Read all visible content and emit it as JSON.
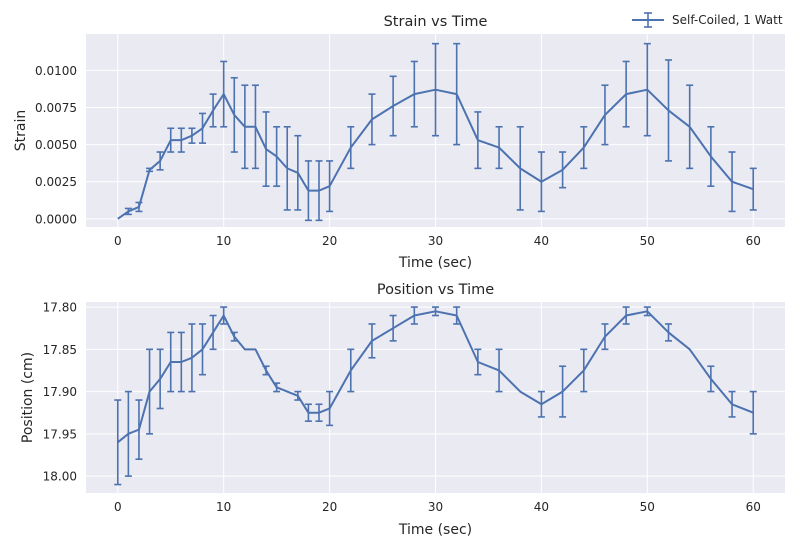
{
  "legend": {
    "label": "Self-Coiled, 1 Watt",
    "placement": "top-right",
    "color": "#4c72b0"
  },
  "chart_data": [
    {
      "type": "line",
      "title": "Strain vs Time",
      "xlabel": "Time (sec)",
      "ylabel": "Strain",
      "xlim": [
        -3,
        63
      ],
      "ylim": [
        -0.00055,
        0.01245
      ],
      "y_inverted": false,
      "grid": true,
      "xticks": [
        0,
        10,
        20,
        30,
        40,
        50,
        60
      ],
      "xtick_labels": [
        "0",
        "10",
        "20",
        "30",
        "40",
        "50",
        "60"
      ],
      "yticks": [
        0.0,
        0.0025,
        0.005,
        0.0075,
        0.01
      ],
      "ytick_labels": [
        "0.0000",
        "0.0025",
        "0.0050",
        "0.0075",
        "0.0100"
      ],
      "series": [
        {
          "name": "Self-Coiled, 1 Watt",
          "color": "#4c72b0",
          "x": [
            0,
            1,
            2,
            3,
            4,
            5,
            6,
            7,
            8,
            9,
            10,
            11,
            12,
            13,
            14,
            15,
            16,
            17,
            18,
            19,
            20,
            22,
            24,
            26,
            28,
            30,
            32,
            34,
            36,
            38,
            40,
            42,
            44,
            46,
            48,
            50,
            52,
            54,
            56,
            58,
            60
          ],
          "y": [
            0.0,
            0.0005,
            0.0008,
            0.0033,
            0.0039,
            0.0053,
            0.0053,
            0.0056,
            0.0061,
            0.0073,
            0.0084,
            0.007,
            0.0062,
            0.0062,
            0.0047,
            0.0042,
            0.0034,
            0.0031,
            0.0019,
            0.0019,
            0.0022,
            0.0048,
            0.0067,
            0.0076,
            0.0084,
            0.0087,
            0.0084,
            0.0053,
            0.0048,
            0.0034,
            0.0025,
            0.0033,
            0.0048,
            0.007,
            0.0084,
            0.0087,
            0.0073,
            0.0062,
            0.0042,
            0.0025,
            0.002
          ],
          "err": [
            0.0,
            0.0002,
            0.0003,
            0.0001,
            0.0006,
            0.0008,
            0.0008,
            0.0005,
            0.001,
            0.0011,
            0.0022,
            0.0025,
            0.0028,
            0.0028,
            0.0025,
            0.002,
            0.0028,
            0.0025,
            0.002,
            0.002,
            0.0017,
            0.0014,
            0.0017,
            0.002,
            0.0022,
            0.0031,
            0.0034,
            0.0019,
            0.0014,
            0.0028,
            0.002,
            0.0012,
            0.0014,
            0.002,
            0.0022,
            0.0031,
            0.0034,
            0.0028,
            0.002,
            0.002,
            0.0014
          ]
        }
      ]
    },
    {
      "type": "line",
      "title": "Position vs Time",
      "xlabel": "Time (sec)",
      "ylabel": "Position (cm)",
      "xlim": [
        -3,
        63
      ],
      "ylim": [
        17.794,
        18.02
      ],
      "y_inverted": true,
      "grid": true,
      "xticks": [
        0,
        10,
        20,
        30,
        40,
        50,
        60
      ],
      "xtick_labels": [
        "0",
        "10",
        "20",
        "30",
        "40",
        "50",
        "60"
      ],
      "yticks": [
        17.8,
        17.85,
        17.9,
        17.95,
        18.0
      ],
      "ytick_labels": [
        "17.80",
        "17.85",
        "17.90",
        "17.95",
        "18.00"
      ],
      "series": [
        {
          "name": "Self-Coiled, 1 Watt",
          "color": "#4c72b0",
          "x": [
            0,
            1,
            2,
            3,
            4,
            5,
            6,
            7,
            8,
            9,
            10,
            11,
            12,
            13,
            14,
            15,
            16,
            17,
            18,
            19,
            20,
            22,
            24,
            26,
            28,
            30,
            32,
            34,
            36,
            38,
            40,
            42,
            44,
            46,
            48,
            50,
            52,
            54,
            56,
            58,
            60
          ],
          "y": [
            17.96,
            17.95,
            17.945,
            17.9,
            17.885,
            17.865,
            17.865,
            17.86,
            17.85,
            17.83,
            17.81,
            17.835,
            17.85,
            17.85,
            17.875,
            17.895,
            17.9,
            17.905,
            17.925,
            17.925,
            17.92,
            17.875,
            17.84,
            17.825,
            17.81,
            17.805,
            17.81,
            17.865,
            17.875,
            17.9,
            17.915,
            17.9,
            17.875,
            17.835,
            17.81,
            17.805,
            17.83,
            17.85,
            17.885,
            17.915,
            17.925
          ],
          "err": [
            0.05,
            0.05,
            0.035,
            0.05,
            0.035,
            0.035,
            0.035,
            0.04,
            0.03,
            0.02,
            0.01,
            0.005,
            0.0,
            0.0,
            0.005,
            0.005,
            0.0,
            0.005,
            0.01,
            0.01,
            0.02,
            0.025,
            0.02,
            0.015,
            0.01,
            0.005,
            0.01,
            0.015,
            0.025,
            0.0,
            0.015,
            0.03,
            0.025,
            0.015,
            0.01,
            0.005,
            0.01,
            0.0,
            0.015,
            0.015,
            0.025
          ]
        }
      ]
    }
  ]
}
